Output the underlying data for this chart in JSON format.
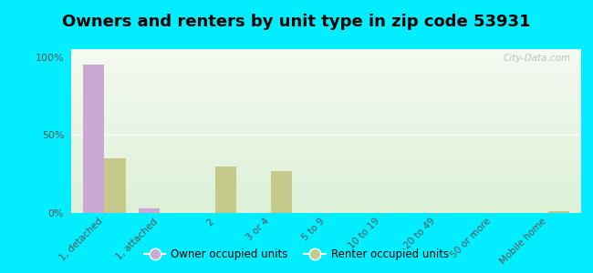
{
  "title": "Owners and renters by unit type in zip code 53931",
  "categories": [
    "1, detached",
    "1, attached",
    "2",
    "3 or 4",
    "5 to 9",
    "10 to 19",
    "20 to 49",
    "50 or more",
    "Mobile home"
  ],
  "owner_values": [
    95,
    3,
    0,
    0,
    0,
    0,
    0,
    0,
    0
  ],
  "renter_values": [
    35,
    0,
    30,
    27,
    0,
    0,
    0,
    0,
    1
  ],
  "owner_color": "#c9a8d4",
  "renter_color": "#c5c98a",
  "background_color": "#00eeff",
  "plot_bg_top": "#f4faf0",
  "plot_bg_bottom": "#ddf0d8",
  "ylabel_ticks": [
    "0%",
    "50%",
    "100%"
  ],
  "ytick_vals": [
    0,
    50,
    100
  ],
  "ylim": [
    0,
    105
  ],
  "bar_width": 0.38,
  "legend_owner": "Owner occupied units",
  "legend_renter": "Renter occupied units",
  "watermark": "City-Data.com",
  "title_fontsize": 13,
  "tick_fontsize": 7.5
}
